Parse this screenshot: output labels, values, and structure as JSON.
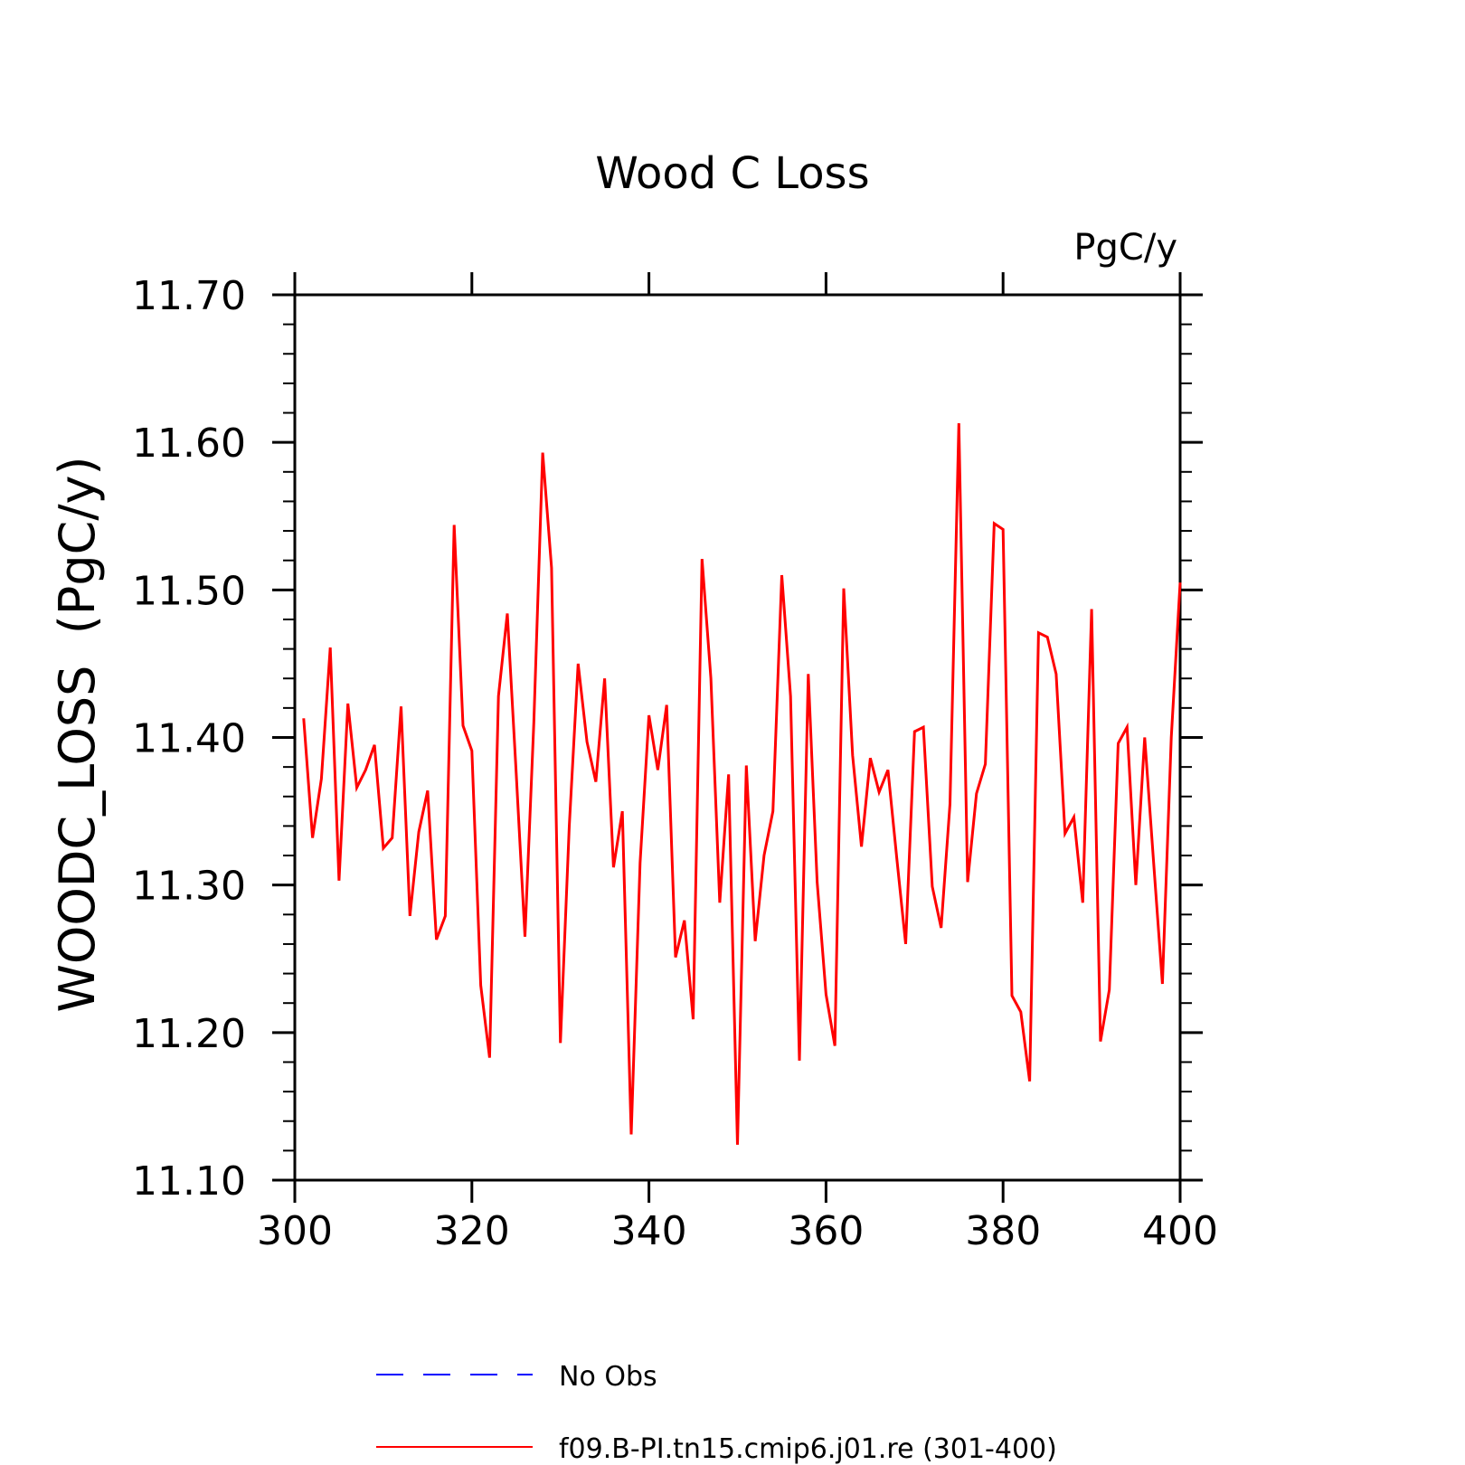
{
  "chart_data": {
    "type": "line",
    "title": "Wood C Loss",
    "units": "PgC/y",
    "xlabel": "",
    "ylabel": "WOODC_LOSS  (PgC/y)",
    "xlim": [
      300,
      400
    ],
    "ylim": [
      11.1,
      11.7
    ],
    "xticks": [
      "300",
      "320",
      "340",
      "360",
      "380",
      "400"
    ],
    "yticks": [
      "11.10",
      "11.20",
      "11.30",
      "11.40",
      "11.50",
      "11.60",
      "11.70"
    ],
    "x_major_step": 20,
    "y_major_step": 0.1,
    "y_minor_step": 0.02,
    "grid": false,
    "legend_position": "bottom",
    "series": [
      {
        "name": "No Obs",
        "color": "#0000ff",
        "style": "dashed",
        "x": [],
        "y": []
      },
      {
        "name": "f09.B-PI.tn15.cmip6.j01.re (301-400)",
        "color": "#ff0000",
        "style": "solid",
        "x": [
          301,
          302,
          303,
          304,
          305,
          306,
          307,
          308,
          309,
          310,
          311,
          312,
          313,
          314,
          315,
          316,
          317,
          318,
          319,
          320,
          321,
          322,
          323,
          324,
          325,
          326,
          327,
          328,
          329,
          330,
          331,
          332,
          333,
          334,
          335,
          336,
          337,
          338,
          339,
          340,
          341,
          342,
          343,
          344,
          345,
          346,
          347,
          348,
          349,
          350,
          351,
          352,
          353,
          354,
          355,
          356,
          357,
          358,
          359,
          360,
          361,
          362,
          363,
          364,
          365,
          366,
          367,
          368,
          369,
          370,
          371,
          372,
          373,
          374,
          375,
          376,
          377,
          378,
          379,
          380,
          381,
          382,
          383,
          384,
          385,
          386,
          387,
          388,
          389,
          390,
          391,
          392,
          393,
          394,
          395,
          396,
          397,
          398,
          399,
          400
        ],
        "y": [
          11.413,
          11.332,
          11.372,
          11.461,
          11.303,
          11.423,
          11.366,
          11.378,
          11.395,
          11.325,
          11.332,
          11.421,
          11.279,
          11.336,
          11.364,
          11.263,
          11.279,
          11.544,
          11.408,
          11.391,
          11.232,
          11.183,
          11.428,
          11.484,
          11.376,
          11.265,
          11.41,
          11.593,
          11.515,
          11.193,
          11.34,
          11.45,
          11.397,
          11.37,
          11.44,
          11.312,
          11.35,
          11.131,
          11.315,
          11.415,
          11.378,
          11.422,
          11.251,
          11.276,
          11.209,
          11.521,
          11.44,
          11.288,
          11.375,
          11.124,
          11.381,
          11.262,
          11.32,
          11.35,
          11.51,
          11.428,
          11.181,
          11.443,
          11.302,
          11.226,
          11.191,
          11.501,
          11.388,
          11.326,
          11.386,
          11.363,
          11.378,
          11.318,
          11.26,
          11.404,
          11.407,
          11.299,
          11.271,
          11.355,
          11.613,
          11.302,
          11.362,
          11.382,
          11.545,
          11.541,
          11.225,
          11.214,
          11.167,
          11.471,
          11.468,
          11.443,
          11.335,
          11.346,
          11.288,
          11.487,
          11.194,
          11.229,
          11.396,
          11.407,
          11.3,
          11.4,
          11.316,
          11.233,
          11.4,
          11.505
        ]
      }
    ]
  }
}
